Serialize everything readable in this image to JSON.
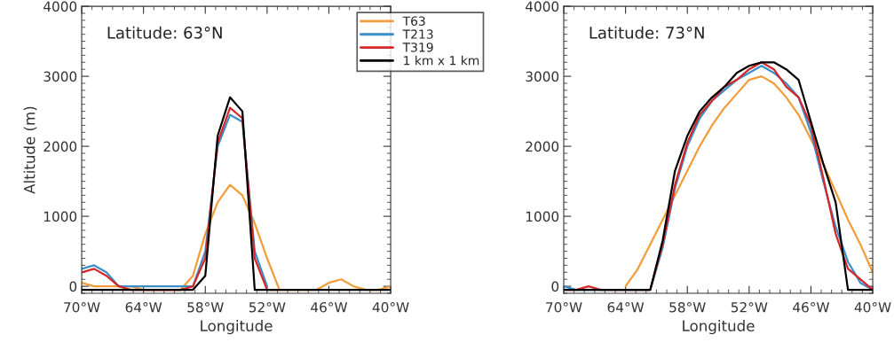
{
  "chart_data": [
    {
      "type": "line",
      "annotations": [
        "Latitude: 63°N"
      ],
      "xlabel": "Longitude",
      "ylabel": "Altitude (m)",
      "x": [
        -70,
        -68.8,
        -67.6,
        -66.4,
        -65.2,
        -64,
        -62.8,
        -61.6,
        -60.4,
        -59.2,
        -58,
        -56.8,
        -55.6,
        -54.4,
        -53.2,
        -52,
        -50.8,
        -49.6,
        -48.4,
        -47.2,
        -46,
        -44.8,
        -43.6,
        -42.4,
        -41.2,
        -40
      ],
      "xlim": [
        -70,
        -40
      ],
      "xticks": [
        {
          "value": -70,
          "label": "70°W"
        },
        {
          "value": -64,
          "label": "64°W"
        },
        {
          "value": -58,
          "label": "58°W"
        },
        {
          "value": -52,
          "label": "52°W"
        },
        {
          "value": -46,
          "label": "46°W"
        },
        {
          "value": -40,
          "label": "40°W"
        }
      ],
      "ylim": [
        -100,
        4000
      ],
      "yticks": [
        0,
        1000,
        2000,
        3000,
        4000
      ],
      "legend": "top right",
      "series": [
        {
          "name": "T63",
          "color": "#f39c3a",
          "values": [
            50,
            0,
            0,
            0,
            0,
            -50,
            -50,
            -50,
            -50,
            150,
            750,
            1200,
            1450,
            1300,
            900,
            400,
            -50,
            -50,
            -50,
            -50,
            50,
            100,
            0,
            -50,
            -50,
            0
          ]
        },
        {
          "name": "T213",
          "color": "#3a8fc8",
          "values": [
            250,
            300,
            200,
            0,
            null,
            null,
            null,
            null,
            null,
            0,
            500,
            2000,
            2450,
            2350,
            500,
            0,
            null,
            null,
            null,
            null,
            null,
            null,
            null,
            null,
            null,
            null
          ]
        },
        {
          "name": "T319",
          "color": "#d62728",
          "values": [
            200,
            250,
            150,
            0,
            -50,
            -50,
            -50,
            -50,
            -50,
            0,
            400,
            2050,
            2550,
            2400,
            400,
            -50,
            -50,
            null,
            null,
            null,
            null,
            null,
            null,
            null,
            null,
            null
          ]
        },
        {
          "name": "1 km x 1 km",
          "color": "#000000",
          "values": [
            -50,
            -50,
            -50,
            -50,
            -50,
            -50,
            -50,
            -50,
            -50,
            -50,
            150,
            2150,
            2700,
            2500,
            -50,
            -50,
            -50,
            -50,
            -50,
            -50,
            -50,
            -50,
            -50,
            -50,
            -50,
            -50
          ]
        }
      ]
    },
    {
      "type": "line",
      "annotations": [
        "Latitude: 73°N"
      ],
      "xlabel": "Longitude",
      "x": [
        -70,
        -68.8,
        -67.6,
        -66.4,
        -65.2,
        -64,
        -62.8,
        -61.6,
        -60.4,
        -59.2,
        -58,
        -56.8,
        -55.6,
        -54.4,
        -53.2,
        -52,
        -50.8,
        -49.6,
        -48.4,
        -47.2,
        -46,
        -44.8,
        -43.6,
        -42.4,
        -41.2,
        -40
      ],
      "xlim": [
        -70,
        -40
      ],
      "xticks": [
        {
          "value": -70,
          "label": "70°W"
        },
        {
          "value": -64,
          "label": "64°W"
        },
        {
          "value": -58,
          "label": "58°W"
        },
        {
          "value": -52,
          "label": "52°W"
        },
        {
          "value": -46,
          "label": "46°W"
        },
        {
          "value": -40,
          "label": "40°W"
        }
      ],
      "ylim": [
        -100,
        4000
      ],
      "yticks": [
        0,
        1000,
        2000,
        3000,
        4000
      ],
      "series": [
        {
          "color": "#f39c3a",
          "values": [
            null,
            null,
            null,
            null,
            null,
            0,
            250,
            600,
            950,
            1300,
            1650,
            2000,
            2300,
            2550,
            2750,
            2950,
            3000,
            2900,
            2700,
            2450,
            2100,
            1750,
            1350,
            950,
            600,
            200
          ]
        },
        {
          "color": "#3a8fc8",
          "values": [
            0,
            -50,
            -50,
            -50,
            -50,
            -50,
            -50,
            -50,
            550,
            1400,
            2000,
            2400,
            2650,
            2800,
            2950,
            3050,
            3150,
            3050,
            2900,
            2700,
            2200,
            1500,
            850,
            350,
            50,
            -50
          ]
        },
        {
          "color": "#d62728",
          "values": [
            -50,
            -50,
            0,
            -50,
            -50,
            -50,
            -50,
            -50,
            600,
            1450,
            2050,
            2450,
            2650,
            2850,
            2950,
            3100,
            3200,
            3100,
            2850,
            2700,
            2300,
            1550,
            750,
            250,
            100,
            -50
          ]
        },
        {
          "color": "#000000",
          "values": [
            -50,
            -50,
            -50,
            -50,
            -50,
            -50,
            -50,
            -50,
            650,
            1650,
            2150,
            2500,
            2700,
            2850,
            3050,
            3150,
            3200,
            3200,
            3100,
            2950,
            2350,
            1750,
            1200,
            -50,
            -50,
            -50
          ]
        }
      ]
    }
  ]
}
